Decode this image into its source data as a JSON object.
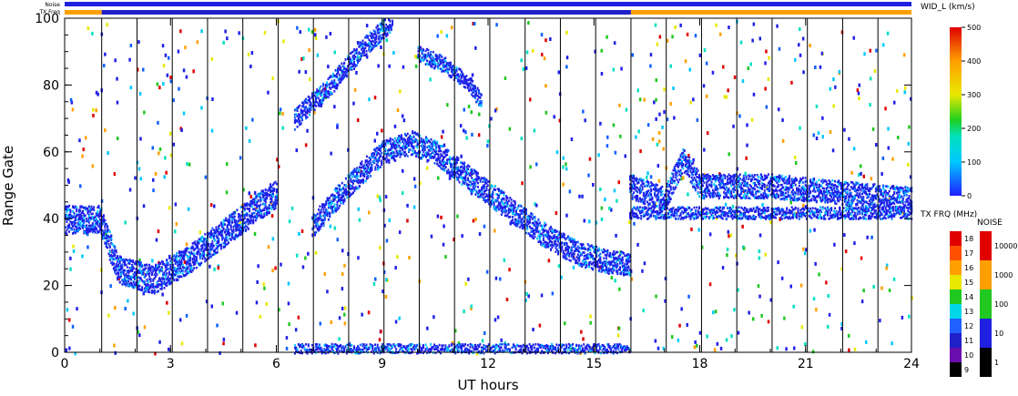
{
  "chart_data": {
    "type": "heatmap",
    "main": {
      "xlabel": "UT hours",
      "ylabel": "Range Gate",
      "xlim": [
        0,
        24
      ],
      "ylim": [
        0,
        100
      ],
      "xticks": [
        "0",
        "3",
        "6",
        "9",
        "12",
        "15",
        "18",
        "21",
        "24"
      ],
      "yticks": [
        "0",
        "20",
        "40",
        "60",
        "80",
        "100"
      ],
      "scan_lines_ut": [
        1.05,
        2.05,
        3.05,
        4.05,
        5.05,
        6.05,
        7.05,
        8.05,
        9.05,
        10.05,
        11.05,
        12.05,
        13.05,
        14.05,
        15.05,
        16.05,
        17.05,
        18.05,
        19.05,
        20.05,
        21.05,
        22.05,
        23.05
      ],
      "echo_bands": [
        {
          "name": "near-range band",
          "points": [
            [
              0,
              40
            ],
            [
              1,
              40
            ],
            [
              1.5,
              25
            ],
            [
              2.5,
              22
            ],
            [
              3.5,
              28
            ],
            [
              4.5,
              36
            ],
            [
              5.5,
              44
            ],
            [
              6,
              48
            ]
          ],
          "width": 7
        },
        {
          "name": "main arc",
          "points": [
            [
              7,
              38
            ],
            [
              8,
              50
            ],
            [
              9,
              60
            ],
            [
              9.8,
              63
            ],
            [
              10.5,
              60
            ],
            [
              11.5,
              52
            ],
            [
              12.5,
              44
            ],
            [
              13.5,
              36
            ],
            [
              14.5,
              30
            ],
            [
              15.5,
              27
            ],
            [
              16,
              27
            ]
          ],
          "width": 6
        },
        {
          "name": "upper arc",
          "points": [
            [
              6.5,
              70
            ],
            [
              7.5,
              80
            ],
            [
              8.5,
              92
            ],
            [
              9.3,
              100
            ]
          ],
          "width": 5
        },
        {
          "name": "loop",
          "points": [
            [
              10,
              90
            ],
            [
              10.8,
              86
            ],
            [
              11.5,
              80
            ],
            [
              11.8,
              75
            ]
          ],
          "width": 4
        },
        {
          "name": "evening band",
          "points": [
            [
              16,
              50
            ],
            [
              17,
              46
            ],
            [
              17.5,
              58
            ],
            [
              18,
              50
            ],
            [
              20,
              50
            ],
            [
              22,
              48
            ],
            [
              24,
              46
            ]
          ],
          "width": 6
        },
        {
          "name": "evening lower edge",
          "points": [
            [
              16,
              42
            ],
            [
              20,
              42
            ],
            [
              24,
              42
            ]
          ],
          "width": 3
        },
        {
          "name": "ground gates",
          "points": [
            [
              6.5,
              1
            ],
            [
              16,
              1
            ]
          ],
          "width": 3
        }
      ]
    },
    "width_colorbar": {
      "label": "WID_L (km/s)",
      "ticks": [
        "0",
        "100",
        "200",
        "300",
        "400",
        "500"
      ],
      "range": [
        0,
        500
      ]
    },
    "freq_colorbar": {
      "label": "TX FRQ (MHz)",
      "ticks": [
        "9",
        "10",
        "11",
        "12",
        "13",
        "14",
        "15",
        "16",
        "17",
        "18"
      ],
      "colors": [
        "#000000",
        "#6a0dad",
        "#2020c8",
        "#2060ff",
        "#00d8e8",
        "#20c820",
        "#e8e800",
        "#ffa000",
        "#ff5000",
        "#e00000"
      ]
    },
    "noise_colorbar": {
      "label": "NOISE",
      "ticks": [
        "1",
        "10",
        "100",
        "1000",
        "10000"
      ],
      "colors": [
        "#000000",
        "#2020e0",
        "#20c820",
        "#ffa000",
        "#e00000"
      ]
    },
    "top_bars": {
      "noise_label": "Noise",
      "freq_label": "TX Freq",
      "noise_color": "#2020e0",
      "freq_segments": [
        {
          "from": 0,
          "to": 1.05,
          "color": "#ffa000"
        },
        {
          "from": 1.05,
          "to": 16.05,
          "color": "#2020c8"
        },
        {
          "from": 16.05,
          "to": 24,
          "color": "#ffa000"
        }
      ]
    }
  }
}
